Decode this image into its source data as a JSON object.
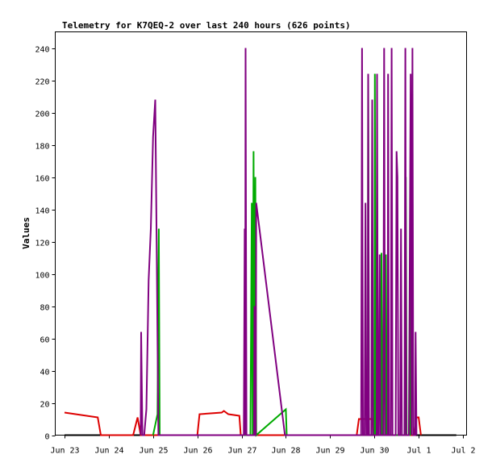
{
  "chart_data": {
    "type": "line",
    "title": "Telemetry for K7QEQ-2 over last 240 hours (626 points)",
    "ylabel": "Values",
    "xlabel": "",
    "x_range_days": [
      0,
      9
    ],
    "ylim": [
      0,
      250
    ],
    "yticks": [
      0,
      20,
      40,
      60,
      80,
      100,
      120,
      140,
      160,
      180,
      200,
      220,
      240
    ],
    "xticks": [
      {
        "label": "Jun 23",
        "day": 0
      },
      {
        "label": "Jun 24",
        "day": 1
      },
      {
        "label": "Jun 25",
        "day": 2
      },
      {
        "label": "Jun 26",
        "day": 3
      },
      {
        "label": "Jun 27",
        "day": 4
      },
      {
        "label": "Jun 28",
        "day": 5
      },
      {
        "label": "Jun 29",
        "day": 6
      },
      {
        "label": "Jun 30",
        "day": 7
      },
      {
        "label": "Jul 1",
        "day": 8
      },
      {
        "label": "Jul 2",
        "day": 9
      }
    ],
    "grid": false,
    "legend": "none",
    "series": [
      {
        "color": "#000000",
        "points": [
          [
            0.0,
            0
          ],
          [
            8.85,
            0
          ]
        ]
      },
      {
        "color": "#dd0000",
        "points": [
          [
            0.0,
            14
          ],
          [
            0.75,
            11
          ],
          [
            0.82,
            0
          ],
          [
            1.55,
            0
          ],
          [
            1.65,
            11
          ],
          [
            1.72,
            0
          ],
          [
            3.0,
            0
          ],
          [
            3.05,
            13
          ],
          [
            3.55,
            14
          ],
          [
            3.6,
            15
          ],
          [
            3.7,
            13
          ],
          [
            3.95,
            12
          ],
          [
            3.98,
            0
          ],
          [
            6.6,
            0
          ],
          [
            6.65,
            10
          ],
          [
            6.95,
            10
          ],
          [
            6.98,
            0
          ],
          [
            7.9,
            0
          ],
          [
            7.95,
            11
          ],
          [
            8.0,
            11
          ],
          [
            8.05,
            0
          ]
        ]
      },
      {
        "color": "#00aa00",
        "points": [
          [
            2.0,
            0
          ],
          [
            2.1,
            13
          ],
          [
            2.13,
            128
          ],
          [
            2.15,
            0
          ],
          [
            4.2,
            0
          ],
          [
            4.23,
            144
          ],
          [
            4.25,
            0
          ],
          [
            4.27,
            176
          ],
          [
            4.29,
            0
          ],
          [
            4.31,
            160
          ],
          [
            4.33,
            0
          ],
          [
            5.0,
            16
          ],
          [
            5.02,
            0
          ],
          [
            6.85,
            0
          ],
          [
            6.86,
            224
          ],
          [
            6.88,
            0
          ],
          [
            7.0,
            0
          ],
          [
            7.01,
            224
          ],
          [
            7.03,
            0
          ],
          [
            7.05,
            0
          ],
          [
            7.06,
            160
          ],
          [
            7.08,
            0
          ],
          [
            7.15,
            0
          ],
          [
            7.16,
            113
          ],
          [
            7.18,
            0
          ],
          [
            7.25,
            0
          ],
          [
            7.26,
            112
          ],
          [
            7.28,
            0
          ],
          [
            7.7,
            0
          ],
          [
            7.71,
            160
          ],
          [
            7.73,
            0
          ],
          [
            7.8,
            0
          ],
          [
            7.81,
            144
          ],
          [
            7.83,
            0
          ]
        ]
      },
      {
        "color": "#800080",
        "points": [
          [
            1.72,
            0
          ],
          [
            1.73,
            64
          ],
          [
            1.76,
            0
          ],
          [
            1.8,
            0
          ],
          [
            1.85,
            16
          ],
          [
            1.9,
            96
          ],
          [
            1.95,
            128
          ],
          [
            2.0,
            185
          ],
          [
            2.05,
            208
          ],
          [
            2.08,
            120
          ],
          [
            2.12,
            0
          ],
          [
            4.05,
            0
          ],
          [
            4.07,
            128
          ],
          [
            4.08,
            0
          ],
          [
            4.09,
            240
          ],
          [
            4.11,
            0
          ],
          [
            4.28,
            0
          ],
          [
            4.29,
            80
          ],
          [
            4.3,
            0
          ],
          [
            4.32,
            0
          ],
          [
            4.33,
            144
          ],
          [
            4.98,
            0
          ],
          [
            6.7,
            0
          ],
          [
            6.72,
            240
          ],
          [
            6.74,
            0
          ],
          [
            6.78,
            0
          ],
          [
            6.8,
            144
          ],
          [
            6.82,
            0
          ],
          [
            6.85,
            0
          ],
          [
            6.86,
            224
          ],
          [
            6.88,
            0
          ],
          [
            6.93,
            0
          ],
          [
            6.95,
            208
          ],
          [
            6.97,
            0
          ],
          [
            7.05,
            0
          ],
          [
            7.06,
            224
          ],
          [
            7.08,
            0
          ],
          [
            7.1,
            0
          ],
          [
            7.12,
            112
          ],
          [
            7.14,
            0
          ],
          [
            7.2,
            0
          ],
          [
            7.22,
            240
          ],
          [
            7.24,
            0
          ],
          [
            7.3,
            0
          ],
          [
            7.31,
            224
          ],
          [
            7.33,
            0
          ],
          [
            7.37,
            0
          ],
          [
            7.39,
            240
          ],
          [
            7.41,
            0
          ],
          [
            7.48,
            0
          ],
          [
            7.5,
            176
          ],
          [
            7.52,
            160
          ],
          [
            7.54,
            0
          ],
          [
            7.58,
            0
          ],
          [
            7.6,
            128
          ],
          [
            7.62,
            0
          ],
          [
            7.68,
            0
          ],
          [
            7.7,
            240
          ],
          [
            7.72,
            0
          ],
          [
            7.78,
            0
          ],
          [
            7.8,
            112
          ],
          [
            7.82,
            224
          ],
          [
            7.84,
            0
          ],
          [
            7.86,
            240
          ],
          [
            7.88,
            0
          ],
          [
            7.92,
            0
          ],
          [
            7.93,
            64
          ],
          [
            7.95,
            0
          ]
        ]
      }
    ]
  }
}
